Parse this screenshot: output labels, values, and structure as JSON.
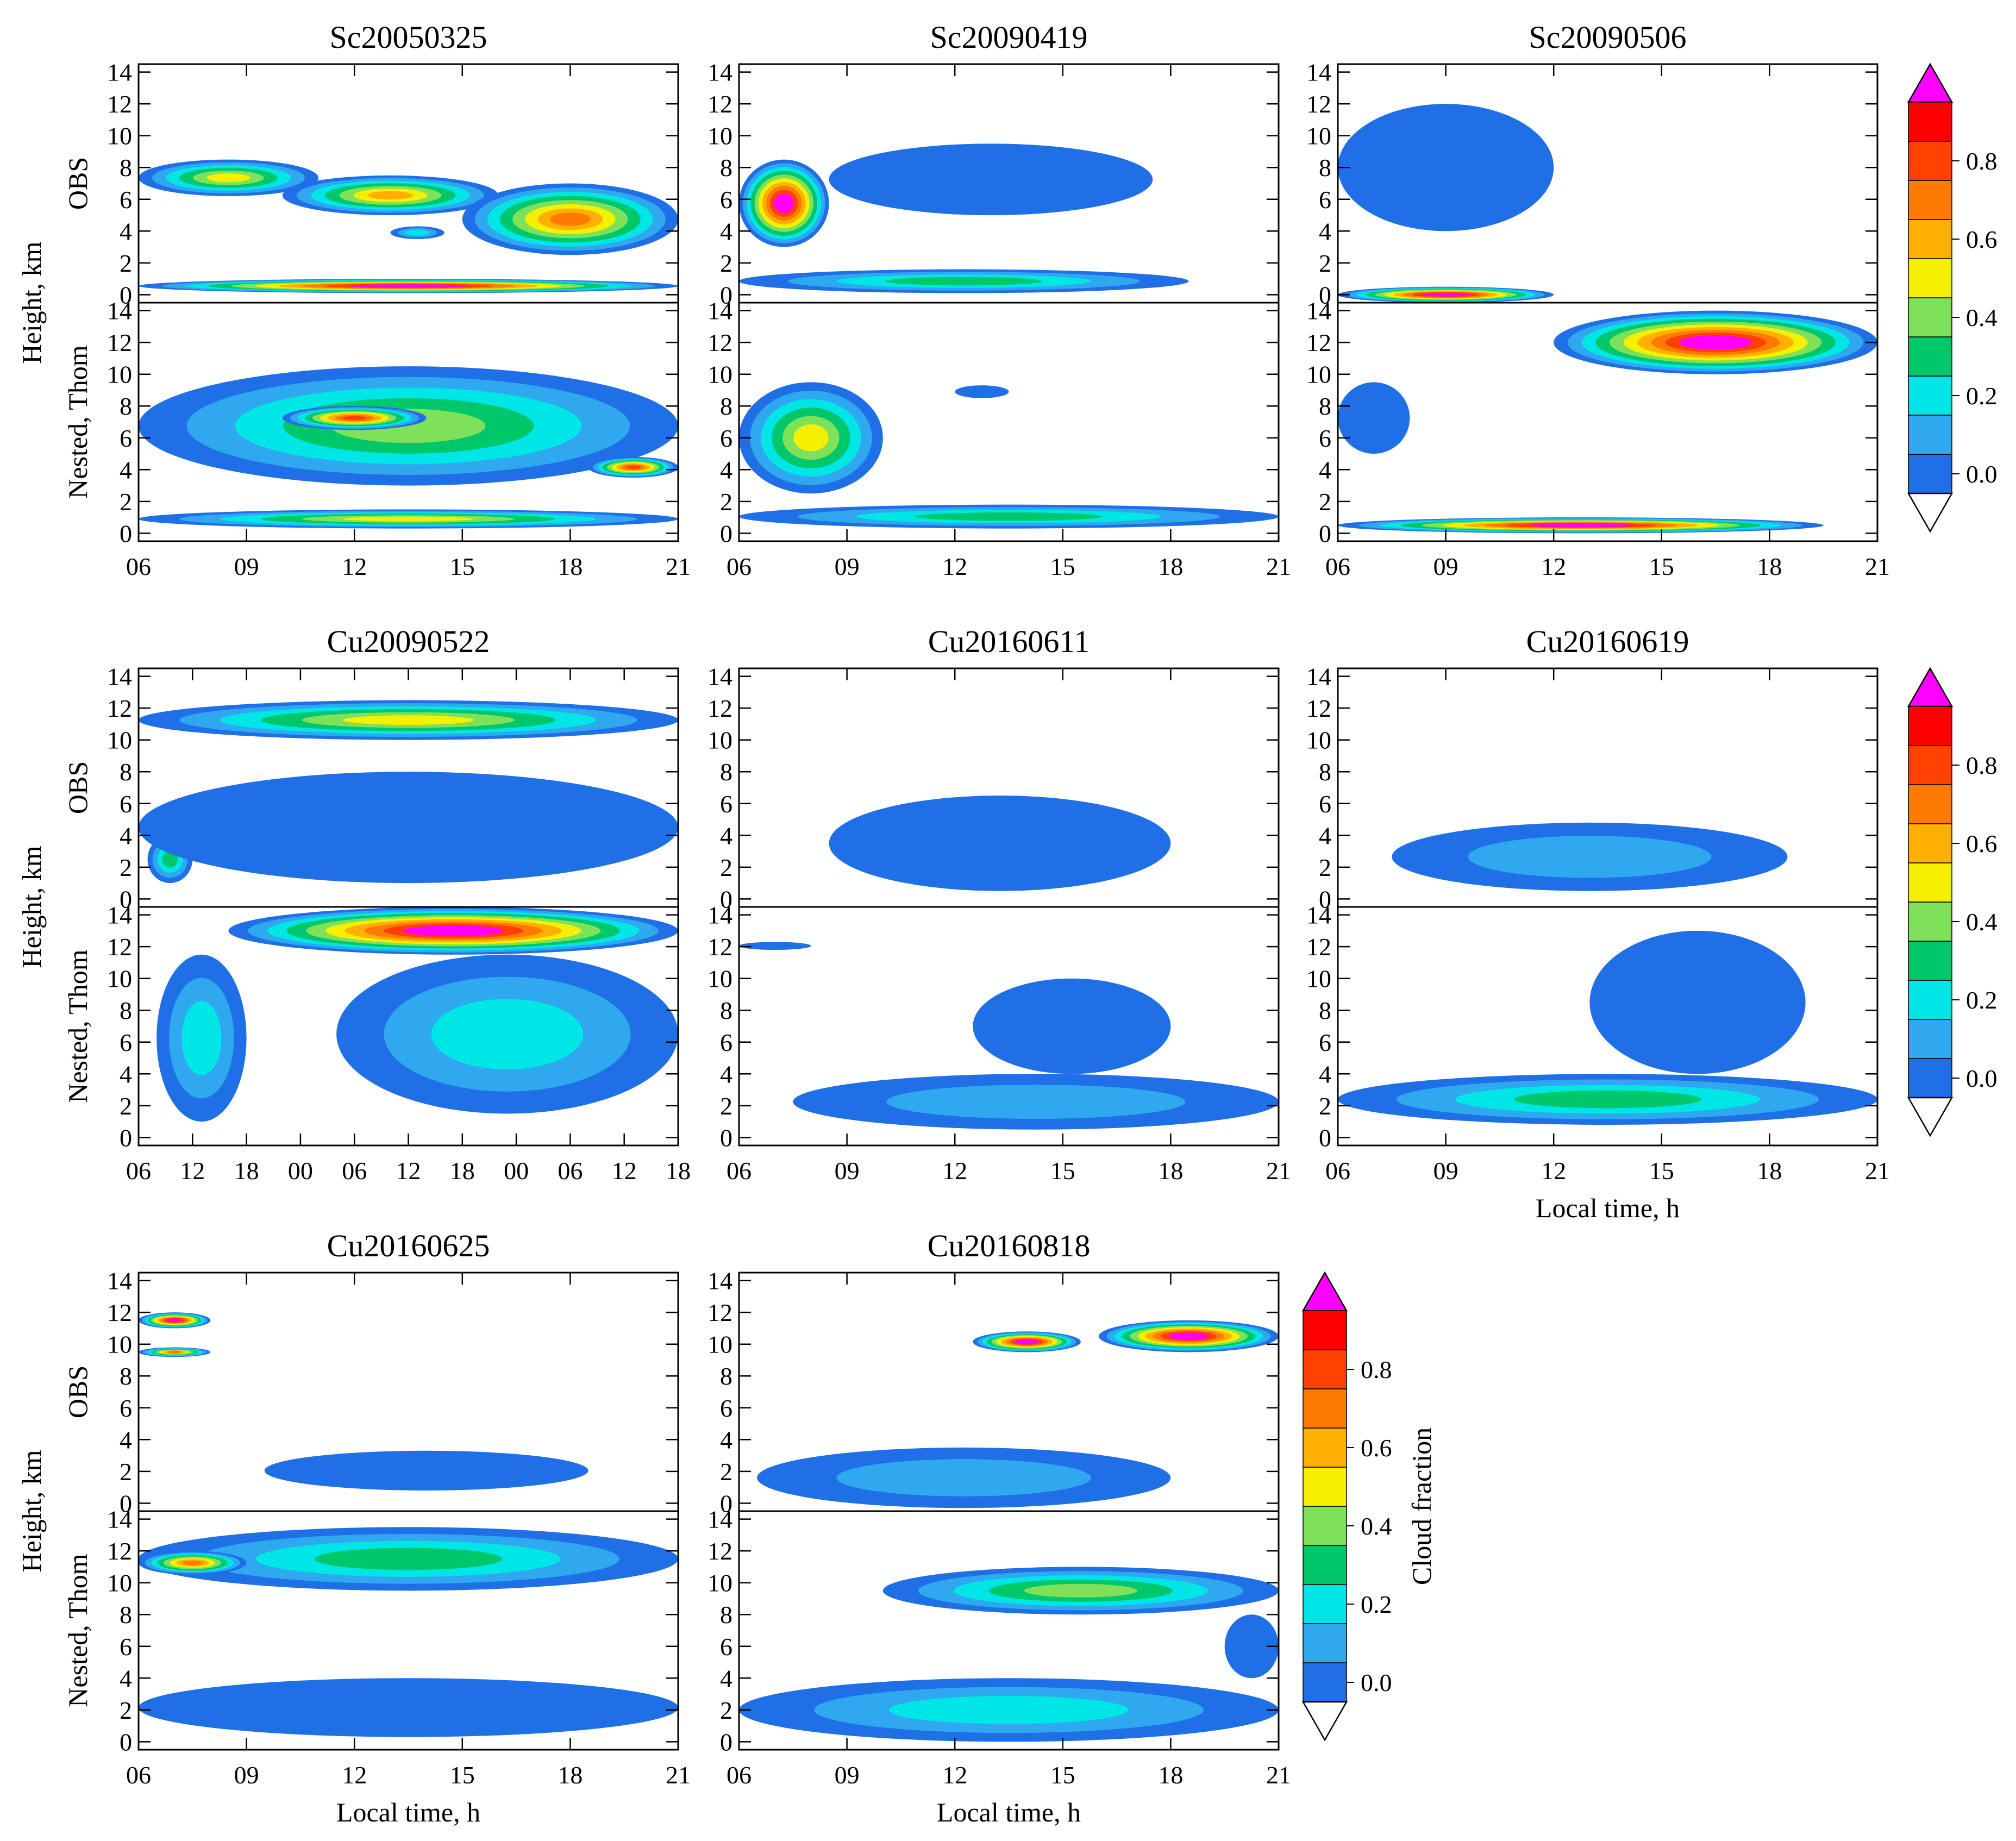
{
  "figure": {
    "y_axis_label": "Height, km",
    "row_label_obs": "OBS",
    "row_label_model": "Nested, Thom",
    "x_axis_label": "Local time, h",
    "colorbar": {
      "label": "Cloud fraction",
      "levels": [
        0.0,
        0.1,
        0.2,
        0.3,
        0.4,
        0.5,
        0.6,
        0.7,
        0.8,
        0.9
      ],
      "tick_labels": [
        "0.0",
        "0.2",
        "0.4",
        "0.6",
        "0.8"
      ],
      "colors": [
        "#1f6fe6",
        "#2fa8f0",
        "#00e5e5",
        "#00c76a",
        "#7fe05a",
        "#f5f000",
        "#ffb000",
        "#ff7a00",
        "#ff4000",
        "#ff0000"
      ],
      "over_color": "#ff00ff",
      "under_color": "#ffffff"
    }
  },
  "chart_data": [
    {
      "type": "contour",
      "title": "Sc20050325",
      "x_ticks": [
        "06",
        "09",
        "12",
        "15",
        "18",
        "21"
      ],
      "y_ticks": [
        "0",
        "2",
        "4",
        "6",
        "8",
        "10",
        "12",
        "14"
      ],
      "xlim": [
        6,
        21
      ],
      "ylim": [
        -0.5,
        14.5
      ],
      "xlabel": "",
      "ylabel": "Height, km",
      "obs": [
        {
          "t0": 6,
          "t1": 11,
          "z0": 6.2,
          "z1": 8.5,
          "v": 0.55
        },
        {
          "t0": 10,
          "t1": 16,
          "z0": 5,
          "z1": 7.5,
          "v": 0.6
        },
        {
          "t0": 15,
          "t1": 21,
          "z0": 2.5,
          "z1": 7,
          "v": 0.75
        },
        {
          "t0": 13,
          "t1": 14.5,
          "z0": 3.5,
          "z1": 4.3,
          "v": 0.25
        },
        {
          "t0": 6,
          "t1": 21,
          "z0": 0.1,
          "z1": 1.0,
          "v": 0.9
        }
      ],
      "model": [
        {
          "t0": 6,
          "t1": 21,
          "z0": 3,
          "z1": 10.5,
          "v": 0.45
        },
        {
          "t0": 10,
          "t1": 14,
          "z0": 6.5,
          "z1": 8,
          "v": 0.85
        },
        {
          "t0": 18.5,
          "t1": 21,
          "z0": 3.5,
          "z1": 4.8,
          "v": 0.85
        },
        {
          "t0": 6,
          "t1": 21,
          "z0": 0.3,
          "z1": 1.5,
          "v": 0.55
        }
      ]
    },
    {
      "type": "contour",
      "title": "Sc20090419",
      "x_ticks": [
        "06",
        "09",
        "12",
        "15",
        "18",
        "21"
      ],
      "y_ticks": [
        "0",
        "2",
        "4",
        "6",
        "8",
        "10",
        "12",
        "14"
      ],
      "xlim": [
        6,
        21
      ],
      "ylim": [
        -0.5,
        14.5
      ],
      "xlabel": "",
      "ylabel": "",
      "obs": [
        {
          "t0": 6,
          "t1": 8.5,
          "z0": 3,
          "z1": 8.5,
          "v": 0.95
        },
        {
          "t0": 6,
          "t1": 18.5,
          "z0": 0.1,
          "z1": 1.6,
          "v": 0.35
        },
        {
          "t0": 8.5,
          "t1": 17.5,
          "z0": 5,
          "z1": 9.5,
          "v": 0.05
        }
      ],
      "model": [
        {
          "t0": 6,
          "t1": 10,
          "z0": 2.5,
          "z1": 9.5,
          "v": 0.5
        },
        {
          "t0": 12,
          "t1": 13.5,
          "z0": 8.5,
          "z1": 9.3,
          "v": 0.05
        },
        {
          "t0": 6,
          "t1": 21,
          "z0": 0.3,
          "z1": 1.8,
          "v": 0.35
        }
      ]
    },
    {
      "type": "contour",
      "title": "Sc20090506",
      "x_ticks": [
        "06",
        "09",
        "12",
        "15",
        "18",
        "21"
      ],
      "y_ticks": [
        "0",
        "2",
        "4",
        "6",
        "8",
        "10",
        "12",
        "14"
      ],
      "xlim": [
        6,
        21
      ],
      "ylim": [
        -0.5,
        14.5
      ],
      "xlabel": "",
      "ylabel": "",
      "obs": [
        {
          "t0": 6,
          "t1": 12,
          "z0": -0.5,
          "z1": 0.5,
          "v": 0.9
        },
        {
          "t0": 6,
          "t1": 12,
          "z0": 4,
          "z1": 12,
          "v": 0.05
        }
      ],
      "model": [
        {
          "t0": 12,
          "t1": 21,
          "z0": 10,
          "z1": 14,
          "v": 0.95
        },
        {
          "t0": 6,
          "t1": 8,
          "z0": 5,
          "z1": 9.5,
          "v": 0.05
        },
        {
          "t0": 6,
          "t1": 19.5,
          "z0": 0,
          "z1": 1.0,
          "v": 0.95
        }
      ]
    },
    {
      "type": "contour",
      "title": "Cu20090522",
      "x_ticks": [
        "06",
        "12",
        "18",
        "00",
        "06",
        "12",
        "18",
        "00",
        "06",
        "12",
        "18"
      ],
      "y_ticks": [
        "0",
        "2",
        "4",
        "6",
        "8",
        "10",
        "12",
        "14"
      ],
      "xlim": [
        6,
        66
      ],
      "ylim": [
        -0.5,
        14.5
      ],
      "xlabel": "",
      "ylabel": "Height, km",
      "obs": [
        {
          "t0": 6,
          "t1": 66,
          "z0": 10,
          "z1": 12.5,
          "v": 0.55
        },
        {
          "t0": 7,
          "t1": 12,
          "z0": 1,
          "z1": 4,
          "v": 0.3
        },
        {
          "t0": 6,
          "t1": 66,
          "z0": 1,
          "z1": 8,
          "v": 0.05
        }
      ],
      "model": [
        {
          "t0": 16,
          "t1": 66,
          "z0": 11.5,
          "z1": 14.5,
          "v": 0.95
        },
        {
          "t0": 8,
          "t1": 18,
          "z0": 1,
          "z1": 11.5,
          "v": 0.2
        },
        {
          "t0": 28,
          "t1": 66,
          "z0": 1.5,
          "z1": 11.5,
          "v": 0.2
        }
      ]
    },
    {
      "type": "contour",
      "title": "Cu20160611",
      "x_ticks": [
        "06",
        "09",
        "12",
        "15",
        "18",
        "21"
      ],
      "y_ticks": [
        "0",
        "2",
        "4",
        "6",
        "8",
        "10",
        "12",
        "14"
      ],
      "xlim": [
        6,
        21
      ],
      "ylim": [
        -0.5,
        14.5
      ],
      "xlabel": "",
      "ylabel": "",
      "obs": [
        {
          "t0": 8.5,
          "t1": 18,
          "z0": 0.5,
          "z1": 6.5,
          "v": 0.05
        }
      ],
      "model": [
        {
          "t0": 6,
          "t1": 8,
          "z0": 11.8,
          "z1": 12.3,
          "v": 0.05
        },
        {
          "t0": 7.5,
          "t1": 21,
          "z0": 0.5,
          "z1": 4,
          "v": 0.15
        },
        {
          "t0": 12.5,
          "t1": 18,
          "z0": 4,
          "z1": 10,
          "v": 0.05
        }
      ]
    },
    {
      "type": "contour",
      "title": "Cu20160619",
      "x_ticks": [
        "06",
        "09",
        "12",
        "15",
        "18",
        "21"
      ],
      "y_ticks": [
        "0",
        "2",
        "4",
        "6",
        "8",
        "10",
        "12",
        "14"
      ],
      "xlim": [
        6,
        21
      ],
      "ylim": [
        -0.5,
        14.5
      ],
      "xlabel": "Local time, h",
      "ylabel": "",
      "obs": [
        {
          "t0": 7.5,
          "t1": 18.5,
          "z0": 0.5,
          "z1": 4.8,
          "v": 0.1
        }
      ],
      "model": [
        {
          "t0": 6,
          "t1": 21,
          "z0": 0.8,
          "z1": 4,
          "v": 0.3
        },
        {
          "t0": 13,
          "t1": 19,
          "z0": 4,
          "z1": 13,
          "v": 0.05
        }
      ]
    },
    {
      "type": "contour",
      "title": "Cu20160625",
      "x_ticks": [
        "06",
        "09",
        "12",
        "15",
        "18",
        "21"
      ],
      "y_ticks": [
        "0",
        "2",
        "4",
        "6",
        "8",
        "10",
        "12",
        "14"
      ],
      "xlim": [
        6,
        21
      ],
      "ylim": [
        -0.5,
        14.5
      ],
      "xlabel": "Local time, h",
      "ylabel": "Height, km",
      "obs": [
        {
          "t0": 6,
          "t1": 8,
          "z0": 11,
          "z1": 12,
          "v": 0.95
        },
        {
          "t0": 6,
          "t1": 8,
          "z0": 9.2,
          "z1": 9.8,
          "v": 0.75
        },
        {
          "t0": 9.5,
          "t1": 18.5,
          "z0": 0.8,
          "z1": 3.3,
          "v": 0.05
        }
      ],
      "model": [
        {
          "t0": 6,
          "t1": 21,
          "z0": 9.5,
          "z1": 13.5,
          "v": 0.35
        },
        {
          "t0": 6,
          "t1": 9,
          "z0": 10.5,
          "z1": 12,
          "v": 0.75
        },
        {
          "t0": 6,
          "t1": 21,
          "z0": 0.3,
          "z1": 4,
          "v": 0.05
        }
      ]
    },
    {
      "type": "contour",
      "title": "Cu20160818",
      "x_ticks": [
        "06",
        "09",
        "12",
        "15",
        "18",
        "21"
      ],
      "y_ticks": [
        "0",
        "2",
        "4",
        "6",
        "8",
        "10",
        "12",
        "14"
      ],
      "xlim": [
        6,
        21
      ],
      "ylim": [
        -0.5,
        14.5
      ],
      "xlabel": "Local time, h",
      "ylabel": "",
      "obs": [
        {
          "t0": 12.5,
          "t1": 15.5,
          "z0": 9.5,
          "z1": 10.8,
          "v": 0.95
        },
        {
          "t0": 16,
          "t1": 21,
          "z0": 9.5,
          "z1": 11.5,
          "v": 0.95
        },
        {
          "t0": 6.5,
          "t1": 18,
          "z0": -0.3,
          "z1": 3.5,
          "v": 0.1
        }
      ],
      "model": [
        {
          "t0": 10,
          "t1": 21,
          "z0": 8,
          "z1": 11,
          "v": 0.4
        },
        {
          "t0": 6,
          "t1": 21,
          "z0": 0,
          "z1": 4,
          "v": 0.2
        },
        {
          "t0": 19.5,
          "t1": 21,
          "z0": 4,
          "z1": 8,
          "v": 0.05
        }
      ]
    }
  ]
}
